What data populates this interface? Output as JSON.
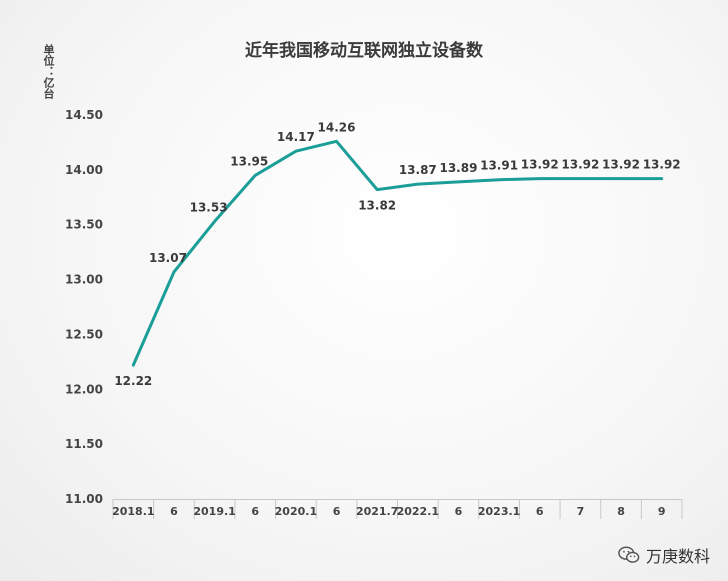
{
  "chart_data": {
    "type": "line",
    "title": "近年我国移动互联网独立设备数",
    "unit_label": "单位：亿台",
    "categories": [
      "2018.1",
      "6",
      "2019.1",
      "6",
      "2020.1",
      "6",
      "2021.7",
      "2022.1",
      "6",
      "2023.1",
      "6",
      "7",
      "8",
      "9"
    ],
    "series": [
      {
        "values": [
          12.22,
          13.07,
          13.53,
          13.95,
          14.17,
          14.26,
          13.82,
          13.87,
          13.89,
          13.91,
          13.92,
          13.92,
          13.92,
          13.92
        ]
      }
    ],
    "data_labels": [
      "12.22",
      "13.07",
      "13.53",
      "13.95",
      "14.17",
      "14.26",
      "13.82",
      "13.87",
      "13.89",
      "13.91",
      "13.92",
      "13.92",
      "13.92",
      "13.92"
    ],
    "y_ticks": [
      "11.00",
      "11.50",
      "12.00",
      "12.50",
      "13.00",
      "13.50",
      "14.00",
      "14.50"
    ],
    "ylim": [
      11.0,
      14.5
    ],
    "grid": false,
    "line_color": "#1a9e97"
  },
  "watermark": {
    "icon": "wechat-icon",
    "text": "万庚数科"
  }
}
